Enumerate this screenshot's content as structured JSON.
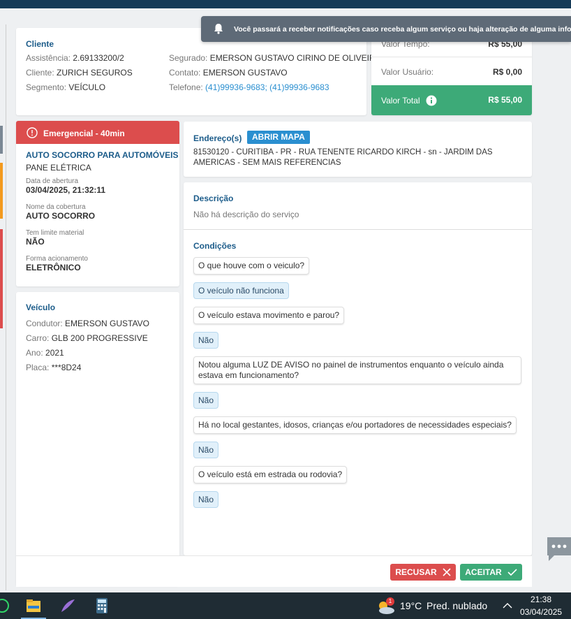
{
  "notification": "Você passará a receber notificações caso receba algum serviço ou haja alteração de alguma informação",
  "client": {
    "title": "Cliente",
    "left": [
      {
        "label": "Assistência:",
        "value": "2.69133200/2"
      },
      {
        "label": "Cliente:",
        "value": "ZURICH SEGUROS"
      },
      {
        "label": "Segmento:",
        "value": "VEÍCULO"
      }
    ],
    "right": [
      {
        "label": "Segurado:",
        "value": "EMERSON GUSTAVO CIRINO DE OLIVEIRA"
      },
      {
        "label": "Contato:",
        "value": "EMERSON GUSTAVO"
      },
      {
        "label": "Telefone:",
        "value": "(41)99936-9683; (41)99936-9683"
      }
    ]
  },
  "prices": [
    {
      "label": "Valor Tempo:",
      "value": "R$ 55,00"
    },
    {
      "label": "Valor Usuário:",
      "value": "R$ 0,00"
    },
    {
      "label": "Valor Total",
      "value": "R$ 55,00"
    }
  ],
  "service": {
    "badge": "Emergencial - 40min",
    "title": "AUTO SOCORRO PARA AUTOMÓVEIS",
    "subtitle": "PANE ELÉTRICA",
    "fields": [
      {
        "label": "Data de abertura",
        "value": "03/04/2025, 21:32:11"
      },
      {
        "label": "Nome da cobertura",
        "value": "AUTO SOCORRO"
      },
      {
        "label": "Tem limite material",
        "value": "NÃO"
      },
      {
        "label": "Forma acionamento",
        "value": "ELETRÔNICO"
      }
    ]
  },
  "vehicle": {
    "title": "Veículo",
    "fields": [
      {
        "label": "Condutor:",
        "value": "EMERSON GUSTAVO"
      },
      {
        "label": "Carro:",
        "value": "GLB 200 PROGRESSIVE"
      },
      {
        "label": "Ano:",
        "value": "2021"
      },
      {
        "label": "Placa:",
        "value": "***8D24"
      }
    ]
  },
  "address": {
    "title": "Endereço(s)",
    "button": "ABRIR MAPA",
    "text": "81530120 - CURITIBA - PR - RUA TENENTE RICARDO KIRCH - sn - JARDIM DAS AMERICAS - SEM MAIS REFERENCIAS"
  },
  "description": {
    "title": "Descrição",
    "text": "Não há descrição do serviço"
  },
  "conditions": {
    "title": "Condições",
    "items": [
      {
        "question": "O que houve com o veiculo?",
        "answer": "O veículo não funciona"
      },
      {
        "question": "O veículo estava movimento e parou?",
        "answer": "Não"
      },
      {
        "question": "Notou alguma LUZ DE AVISO no painel de instrumentos enquanto o veículo ainda estava em funcionamento?",
        "answer": "Não"
      },
      {
        "question": "Há no local gestantes, idosos, crianças e/ou portadores de necessidades especiais?",
        "answer": "Não"
      },
      {
        "question": "O veículo está em estrada ou rodovia?",
        "answer": "Não"
      }
    ]
  },
  "actions": {
    "refuse": "RECUSAR",
    "accept": "ACEITAR"
  },
  "taskbar": {
    "badge": "1",
    "temperature": "19°C",
    "weather": "Pred. nublado",
    "time": "21:38",
    "date": "03/04/2025"
  }
}
